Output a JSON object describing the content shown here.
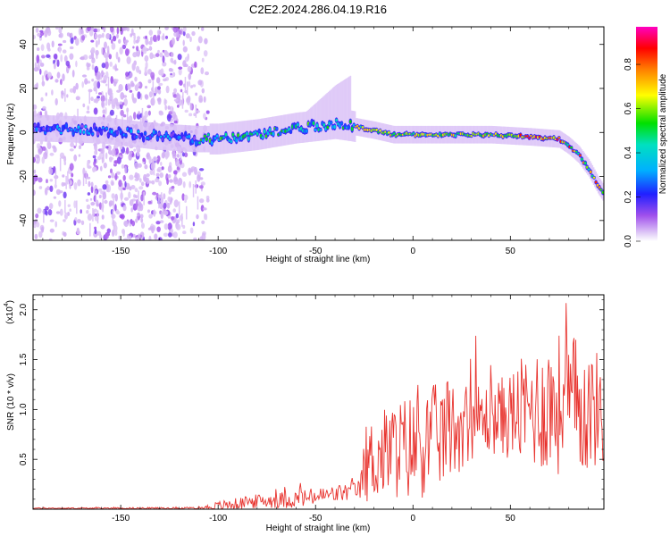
{
  "title": "C2E2.2024.286.04.19.R16",
  "chart_data": [
    {
      "type": "heatmap",
      "xlabel": "Height of straight line (km)",
      "ylabel": "Frequency (Hz)",
      "xlim": [
        -195,
        98
      ],
      "ylim": [
        -49,
        48
      ],
      "xticks": [
        -150,
        -100,
        -50,
        0,
        50
      ],
      "yticks": [
        -40,
        -20,
        0,
        20,
        40
      ],
      "colorbar": {
        "label": "Normalized spectral amplitude",
        "range": [
          0,
          0.97
        ],
        "ticks": [
          "0.0",
          "0.2",
          "0.4",
          "0.6",
          "0.8"
        ],
        "colors": [
          "#ffffff",
          "#d9c2f5",
          "#8a2be2",
          "#0000ff",
          "#00e5ff",
          "#00e000",
          "#ffff00",
          "#ff8000",
          "#ff0000",
          "#ff00ff"
        ]
      },
      "ridge": {
        "x": [
          -195,
          -160,
          -130,
          -110,
          -100,
          -80,
          -60,
          -40,
          -32,
          -20,
          -10,
          0,
          20,
          40,
          60,
          75,
          80,
          85,
          90,
          95,
          98
        ],
        "y": [
          2,
          1,
          -2,
          -3,
          -3,
          -1,
          2,
          4,
          3,
          1,
          -1,
          -1,
          -1,
          -1,
          -2,
          -3,
          -6,
          -10,
          -16,
          -24,
          -28
        ]
      },
      "grid": false
    },
    {
      "type": "line",
      "xlabel": "Height of straight line (km)",
      "ylabel": "SNR (10 * v/v)",
      "yscale_label": "(x10",
      "yscale_exponent": "4",
      "xlim": [
        -195,
        98
      ],
      "ylim": [
        0,
        2.15
      ],
      "xticks": [
        -150,
        -100,
        -50,
        0,
        50
      ],
      "yticks": [
        "0.5",
        "1.0",
        "1.5",
        "2.0"
      ],
      "color": "#e8332e",
      "envelope": {
        "x": [
          -195,
          -110,
          -100,
          -80,
          -60,
          -40,
          -26,
          -25,
          -10,
          0,
          10,
          20,
          30,
          40,
          50,
          60,
          70,
          80,
          90,
          98
        ],
        "base": [
          0.01,
          0.01,
          0.03,
          0.08,
          0.1,
          0.15,
          0.2,
          0.45,
          0.6,
          0.62,
          0.7,
          0.8,
          0.9,
          0.9,
          0.95,
          1.0,
          1.05,
          1.05,
          1.0,
          1.0
        ],
        "amp": [
          0.005,
          0.01,
          0.05,
          0.07,
          0.09,
          0.09,
          0.1,
          0.4,
          0.5,
          0.55,
          0.55,
          0.5,
          0.4,
          0.35,
          0.45,
          0.6,
          0.7,
          0.75,
          0.65,
          0.55
        ]
      },
      "grid": false
    }
  ]
}
